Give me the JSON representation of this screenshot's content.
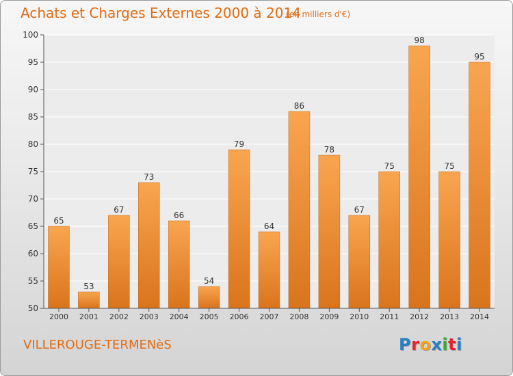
{
  "title": "Achats et Charges Externes 2000 à 2014",
  "subtitle": "(en milliers d'€)",
  "commune": "VILLEROUGE-TERMENèS",
  "logo": {
    "text": "Proxiti",
    "colors": [
      "#2a7fc1",
      "#e4232b",
      "#f2a51a",
      "#2a7fc1",
      "#38a935",
      "#e4232b",
      "#2a7fc1"
    ]
  },
  "colors": {
    "bar_top": "#f9a550",
    "bar_bottom": "#d9741c",
    "text_accent": "#e06c12"
  },
  "chart_data": {
    "type": "bar",
    "categories": [
      "2000",
      "2001",
      "2002",
      "2003",
      "2004",
      "2005",
      "2006",
      "2007",
      "2008",
      "2009",
      "2010",
      "2011",
      "2012",
      "2013",
      "2014"
    ],
    "values": [
      65,
      53,
      67,
      73,
      66,
      54,
      79,
      64,
      86,
      78,
      67,
      75,
      98,
      75,
      95
    ],
    "ylim": [
      50,
      100
    ],
    "yticks": [
      50,
      55,
      60,
      65,
      70,
      75,
      80,
      85,
      90,
      95,
      100
    ],
    "xlabel": "",
    "ylabel": "",
    "grid": true,
    "data_labels": true
  }
}
